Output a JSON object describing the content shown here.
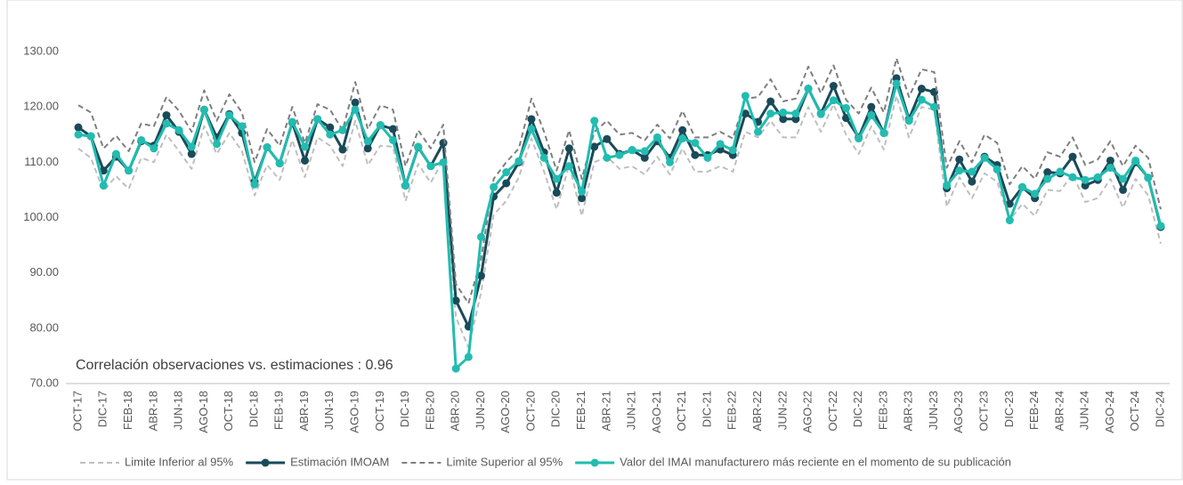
{
  "chart_data": {
    "type": "line",
    "annotation": "Correlación observaciones vs. estimaciones :  0.96",
    "categories": [
      "OCT-17",
      null,
      "DIC-17",
      null,
      "FEB-18",
      null,
      "ABR-18",
      null,
      "JUN-18",
      null,
      "AGO-18",
      null,
      "OCT-18",
      null,
      "DIC-18",
      null,
      "FEB-19",
      null,
      "ABR-19",
      null,
      "JUN-19",
      null,
      "AGO-19",
      null,
      "OCT-19",
      null,
      "DIC-19",
      null,
      "FEB-20",
      null,
      "ABR-20",
      null,
      "JUN-20",
      null,
      "AGO-20",
      null,
      "OCT-20",
      null,
      "DIC-20",
      null,
      "FEB-21",
      null,
      "ABR-21",
      null,
      "JUN-21",
      null,
      "AGO-21",
      null,
      "OCT-21",
      null,
      "DIC-21",
      null,
      "FEB-22",
      null,
      "ABR-22",
      null,
      "JUN-22",
      null,
      "AGO-22",
      null,
      "OCT-22",
      null,
      "DIC-22",
      null,
      "FEB-23",
      null,
      "ABR-23",
      null,
      "JUN-23",
      null,
      "AGO-23",
      null,
      "OCT-23",
      null,
      "DIC-23",
      null,
      "FEB-24",
      null,
      "ABR-24",
      null,
      "JUN-24",
      null,
      "AGO-24",
      null,
      "OCT-24",
      null,
      "DIC-24"
    ],
    "series": [
      {
        "name": "Limite Inferior al 95%",
        "color": "#bfbfbf",
        "dashed": true,
        "markers": false,
        "values": [
          112.5,
          110.8,
          104.8,
          107.5,
          105.2,
          110.8,
          110,
          115,
          112,
          108.8,
          116.5,
          111.5,
          115.3,
          112,
          104,
          109.5,
          106.8,
          114,
          107.3,
          114.5,
          113,
          109.3,
          117.5,
          109.5,
          113,
          112.8,
          103,
          109.7,
          106.3,
          110.5,
          82,
          76.5,
          86.5,
          100.5,
          103,
          107.3,
          114.3,
          108.3,
          101.5,
          109.5,
          100.3,
          110,
          111,
          108.8,
          109.3,
          107.8,
          111,
          107.8,
          112.5,
          108.3,
          108.3,
          109.3,
          108.3,
          115.5,
          114.5,
          117.5,
          114.5,
          114.5,
          120,
          115.5,
          120.5,
          115,
          111.5,
          116.5,
          112.3,
          122,
          114.5,
          120,
          119.5,
          102,
          107.3,
          103.5,
          108,
          106.5,
          99.5,
          102.5,
          100.3,
          105,
          104.8,
          107.8,
          102.8,
          103.5,
          107,
          101.8,
          107,
          104,
          95.3
        ]
      },
      {
        "name": "Estimación IMOAM",
        "color": "#1a4a58",
        "dashed": false,
        "markers": true,
        "values": [
          116.3,
          114.7,
          108.5,
          111,
          108.5,
          113.8,
          113,
          118.5,
          115.5,
          111.5,
          119.5,
          114.5,
          118.7,
          115.3,
          106.5,
          112.7,
          109.8,
          117.2,
          110.3,
          117.8,
          116.3,
          112.3,
          120.8,
          112.5,
          116.7,
          116,
          105.8,
          112.7,
          109.3,
          113.5,
          85,
          80.3,
          89.5,
          103.8,
          106.2,
          110,
          117.8,
          111.8,
          104.5,
          112.5,
          103.5,
          112.8,
          114.2,
          111.5,
          112.2,
          110.8,
          113.8,
          110.8,
          115.8,
          111.3,
          111.3,
          112.3,
          111.3,
          118.8,
          117.3,
          121,
          117.8,
          117.8,
          123.3,
          118.8,
          123.8,
          118,
          114.5,
          120,
          115.3,
          125.2,
          117.8,
          123.3,
          122.7,
          105.3,
          110.5,
          106.5,
          111,
          109.5,
          102.5,
          105.5,
          103.5,
          108.2,
          108,
          111,
          105.8,
          106.8,
          110.3,
          105,
          110,
          107.2,
          98.3
        ]
      },
      {
        "name": "Limite Superior al 95%",
        "color": "#7f7f7f",
        "dashed": true,
        "markers": false,
        "values": [
          120.3,
          119,
          112.5,
          114.8,
          112,
          117,
          116.5,
          121.8,
          119.3,
          115.5,
          123,
          117.5,
          122.3,
          119,
          110,
          116,
          113,
          120,
          113.5,
          120.5,
          119.5,
          115.8,
          124.5,
          116,
          120.3,
          119.5,
          109.3,
          115.8,
          112.5,
          116.8,
          88,
          84.5,
          92.5,
          107,
          110,
          112.5,
          121.5,
          115.5,
          108.5,
          115.8,
          107,
          115.5,
          117.5,
          115,
          115.3,
          114,
          116.8,
          114.3,
          119.3,
          114.5,
          114.5,
          115.5,
          114.3,
          121.5,
          121.8,
          125,
          121,
          121.5,
          127.3,
          122.5,
          127.5,
          121.3,
          118.8,
          123.5,
          119,
          128.8,
          121.8,
          126.8,
          126.3,
          109,
          113.8,
          110,
          115,
          113.5,
          106,
          109.3,
          107,
          111.8,
          111,
          114.5,
          109.5,
          110.5,
          113.8,
          109.3,
          113,
          110.8,
          101.5
        ]
      },
      {
        "name": "Valor del IMAI manufacturero más reciente en el momento de su publicación",
        "color": "#22bcb0",
        "dashed": false,
        "markers": true,
        "values": [
          115,
          114.7,
          105.8,
          111.5,
          108.5,
          114,
          112.5,
          117,
          115.8,
          112.8,
          119.5,
          113.3,
          118.5,
          116.5,
          106,
          112.7,
          109.8,
          117.3,
          112.8,
          117.8,
          115,
          115.8,
          119.5,
          113.8,
          116.7,
          114,
          105.8,
          112.8,
          109.3,
          110,
          72.7,
          74.8,
          96.5,
          105.5,
          108.2,
          110.2,
          116,
          110.8,
          107,
          109.3,
          104.7,
          117.5,
          110.8,
          111.3,
          112.2,
          112,
          114.5,
          110,
          114.3,
          113.5,
          110.8,
          113.3,
          112.2,
          122,
          115.5,
          118.8,
          119,
          118.8,
          123.3,
          118.7,
          121.2,
          119.8,
          114.3,
          118.5,
          115.3,
          124.2,
          117.5,
          121.3,
          120,
          105.8,
          108.5,
          108.3,
          110.8,
          108.7,
          99.5,
          105.5,
          104.3,
          107,
          108.3,
          107.3,
          106.8,
          107.3,
          109,
          107,
          110.3,
          107.2,
          98.5
        ]
      }
    ],
    "ylim": [
      70,
      130
    ],
    "yticks": [
      {
        "value": 70,
        "label": "70.00"
      },
      {
        "value": 80,
        "label": "80.00"
      },
      {
        "value": 90,
        "label": "90.00"
      },
      {
        "value": 100,
        "label": "100.00"
      },
      {
        "value": 110,
        "label": "110.00"
      },
      {
        "value": 120,
        "label": "120.00"
      },
      {
        "value": 130,
        "label": "130.00"
      }
    ],
    "grid": false,
    "legend": "bottom"
  }
}
